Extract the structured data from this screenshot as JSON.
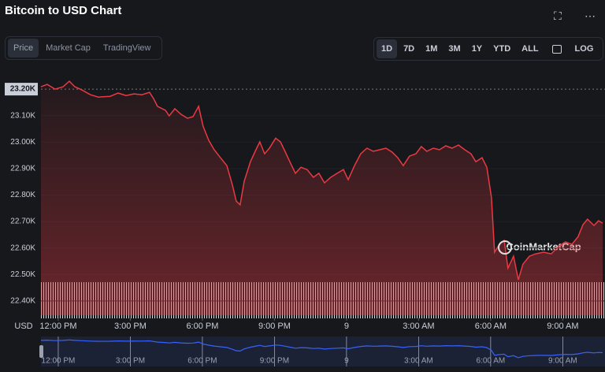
{
  "ui": {
    "title": "Bitcoin to USD Chart",
    "tabs": [
      "Price",
      "Market Cap",
      "TradingView"
    ],
    "ranges": [
      "1D",
      "7D",
      "1M",
      "3M",
      "1Y",
      "YTD",
      "ALL"
    ],
    "log": "LOG",
    "currency": "USD",
    "watermark": "CoinMarketCap"
  },
  "chart_data": {
    "type": "line",
    "x": [
      -0.72,
      -0.46,
      -0.13,
      0.2,
      0.46,
      0.69,
      0.98,
      1.34,
      1.67,
      2.16,
      2.49,
      2.82,
      3.15,
      3.48,
      3.8,
      3.97,
      4.13,
      4.46,
      4.62,
      4.85,
      5.11,
      5.38,
      5.61,
      5.84,
      6.03,
      6.26,
      6.49,
      6.75,
      7.02,
      7.25,
      7.41,
      7.57,
      7.74,
      8,
      8.23,
      8.39,
      8.59,
      8.79,
      9.05,
      9.25,
      9.44,
      9.64,
      9.87,
      10.1,
      10.36,
      10.62,
      10.85,
      11.08,
      11.34,
      11.61,
      11.87,
      12.07,
      12.33,
      12.59,
      12.85,
      13.11,
      13.38,
      13.64,
      13.9,
      14.13,
      14.36,
      14.62,
      14.89,
      15.11,
      15.34,
      15.61,
      15.87,
      16.13,
      16.39,
      16.66,
      16.92,
      17.18,
      17.38,
      17.64,
      17.84,
      18.03,
      18.16,
      18.36,
      18.56,
      18.72,
      18.95,
      19.15,
      19.34,
      19.61,
      19.87,
      20.2,
      20.52,
      20.85,
      21.11,
      21.38,
      21.64,
      21.84,
      22.03,
      22.3,
      22.49,
      22.66
    ],
    "series": [
      {
        "color": "#ea3943",
        "values": [
          23209,
          23218,
          23200,
          23209,
          23230,
          23209,
          23197,
          23179,
          23170,
          23173,
          23185,
          23176,
          23182,
          23179,
          23188,
          23164,
          23135,
          23120,
          23099,
          23126,
          23105,
          23090,
          23096,
          23135,
          23060,
          23007,
          22971,
          22941,
          22911,
          22837,
          22777,
          22763,
          22852,
          22926,
          22971,
          23001,
          22956,
          22977,
          23015,
          23001,
          22965,
          22926,
          22882,
          22905,
          22896,
          22867,
          22882,
          22846,
          22867,
          22882,
          22896,
          22858,
          22911,
          22956,
          22977,
          22965,
          22971,
          22977,
          22962,
          22941,
          22911,
          22947,
          22956,
          22983,
          22965,
          22977,
          22971,
          22986,
          22977,
          22989,
          22971,
          22956,
          22926,
          22941,
          22905,
          22792,
          22584,
          22614,
          22629,
          22524,
          22569,
          22480,
          22539,
          22569,
          22578,
          22584,
          22578,
          22608,
          22623,
          22614,
          22643,
          22688,
          22709,
          22685,
          22703,
          22694
        ]
      }
    ],
    "xlim": [
      -0.72,
      22.66
    ],
    "xticks": [
      {
        "value": 0,
        "label": "12:00 PM"
      },
      {
        "value": 3,
        "label": "3:00 PM"
      },
      {
        "value": 6,
        "label": "6:00 PM"
      },
      {
        "value": 9,
        "label": "9:00 PM"
      },
      {
        "value": 12,
        "label": "9"
      },
      {
        "value": 15,
        "label": "3:00 AM"
      },
      {
        "value": 18,
        "label": "6:00 AM"
      },
      {
        "value": 21,
        "label": "9:00 AM"
      }
    ],
    "ylim": [
      22346,
      23239
    ],
    "yticks": [
      {
        "value": 22400,
        "label": "22.40K"
      },
      {
        "value": 22500,
        "label": "22.50K"
      },
      {
        "value": 22600,
        "label": "22.60K"
      },
      {
        "value": 22700,
        "label": "22.70K"
      },
      {
        "value": 22800,
        "label": "22.80K"
      },
      {
        "value": 22900,
        "label": "22.90K"
      },
      {
        "value": 23000,
        "label": "23.00K"
      },
      {
        "value": 23100,
        "label": "23.10K"
      },
      {
        "value": 23200,
        "label": "23.20K"
      }
    ],
    "navigator_color": "#3861fb"
  }
}
